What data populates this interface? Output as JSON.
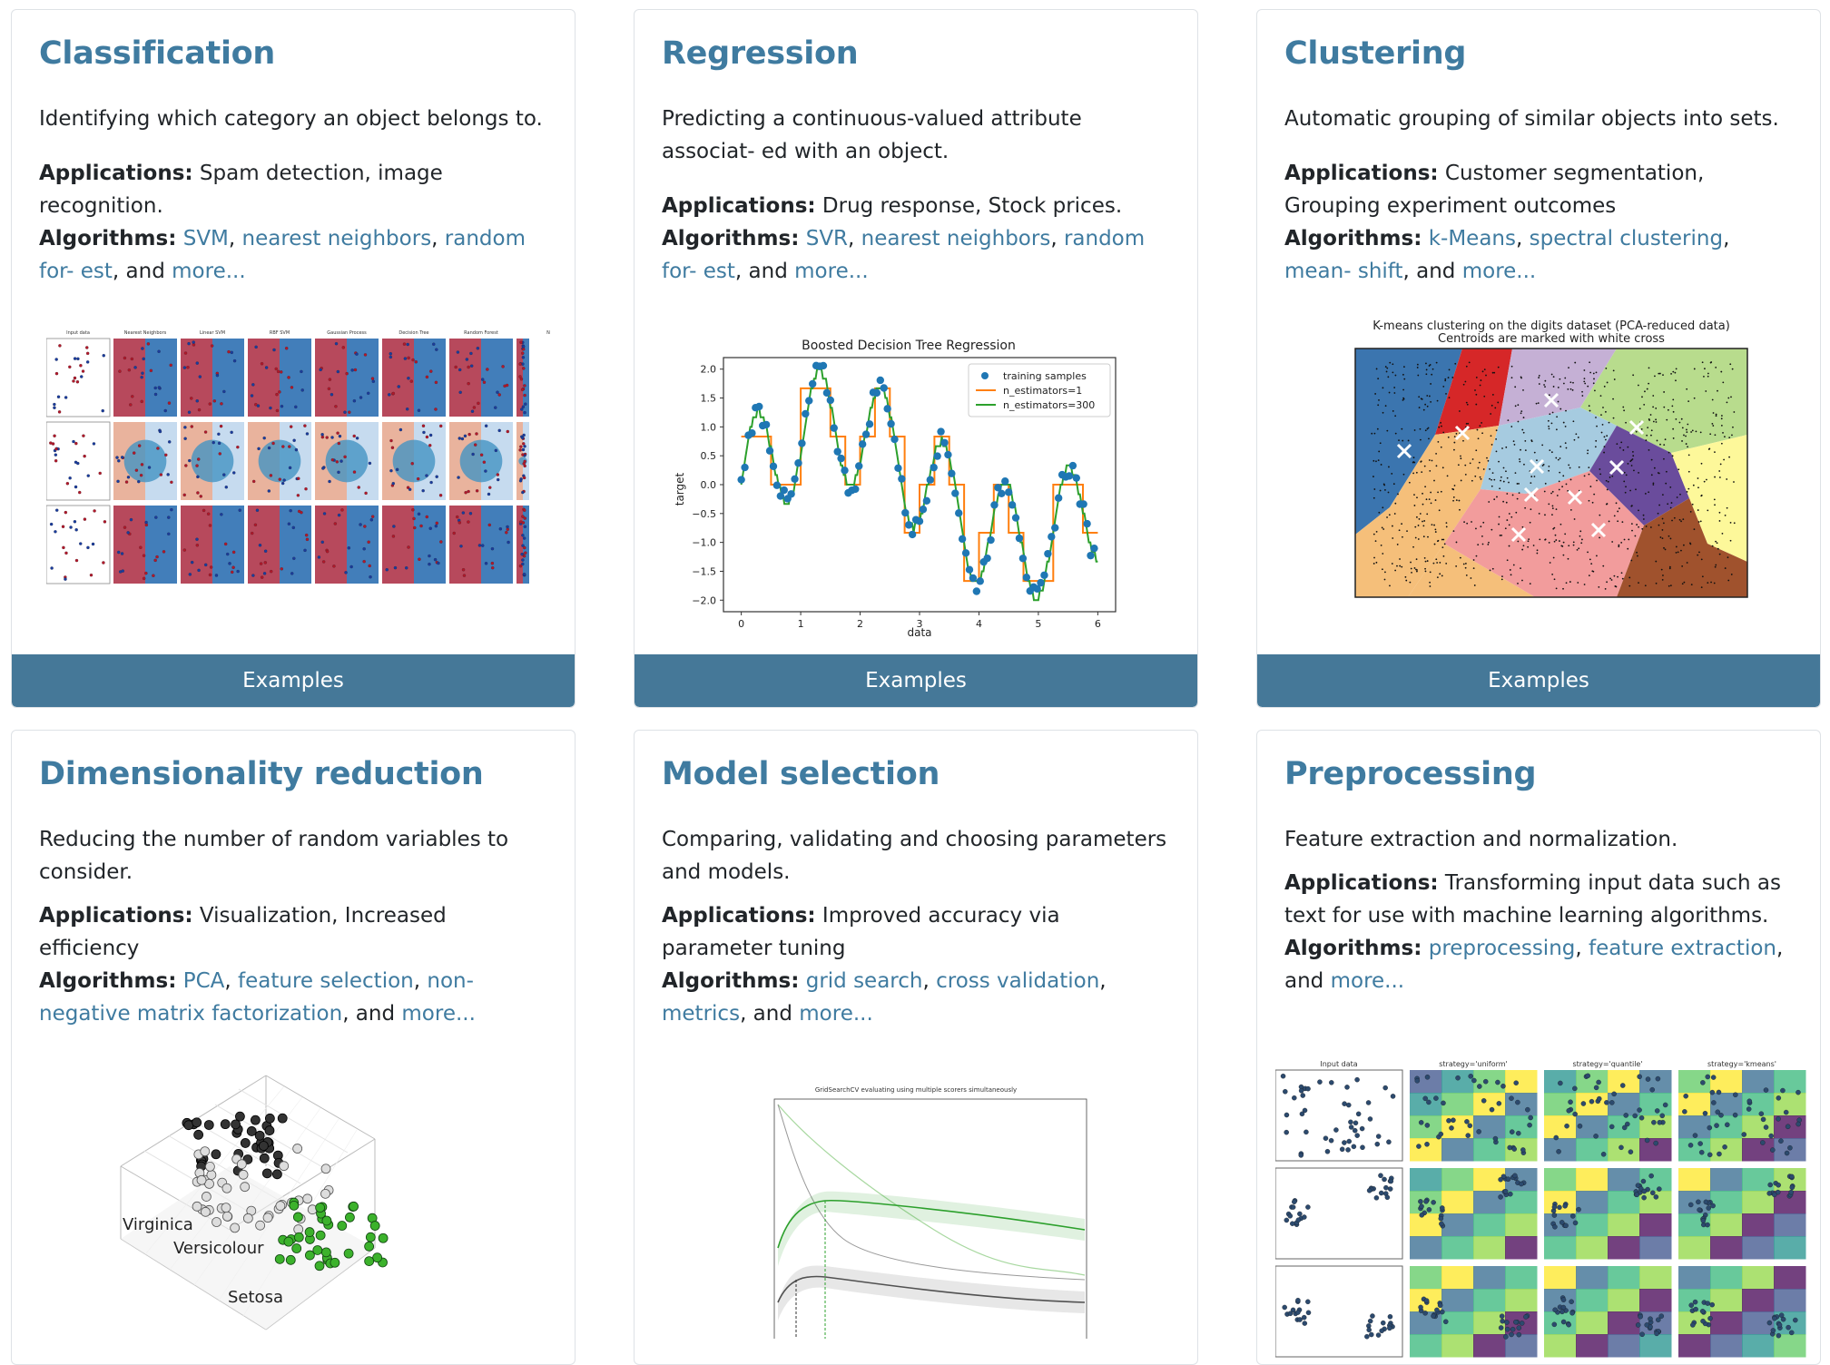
{
  "colors": {
    "heading": "#3f7ba0",
    "link": "#3f7ba0",
    "button_bg": "#457898",
    "button_text": "#ffffff",
    "border": "#dee2e6",
    "text": "#212529"
  },
  "labels": {
    "applications": "Applications:",
    "algorithms": "Algorithms:",
    "and": ", and",
    "comma": ",",
    "button": "Examples"
  },
  "cards": [
    {
      "title": "Classification",
      "desc": "Identifying which category an object belongs to.",
      "apps": "Spam detection, image recognition.",
      "algos": [
        "SVM",
        "nearest neighbors",
        "random for- est"
      ],
      "more": "more..."
    },
    {
      "title": "Regression",
      "desc": "Predicting a continuous-valued attribute associat- ed with an object.",
      "apps": "Drug response, Stock prices.",
      "algos": [
        "SVR",
        "nearest neighbors",
        "random for- est"
      ],
      "more": "more..."
    },
    {
      "title": "Clustering",
      "desc": "Automatic grouping of similar objects into sets.",
      "apps": "Customer segmentation, Grouping experiment outcomes",
      "algos": [
        "k-Means",
        "spectral clustering",
        "mean- shift"
      ],
      "more": "more..."
    },
    {
      "title": "Dimensionality reduction",
      "desc": "Reducing the number of random variables to consider.",
      "apps": "Visualization, Increased efficiency",
      "algos": [
        "PCA",
        "feature selection",
        "non-negative matrix factorization"
      ],
      "more": "more..."
    },
    {
      "title": "Model selection",
      "desc": "Comparing, validating and choosing parameters and models.",
      "apps": "Improved accuracy via parameter tuning",
      "algos": [
        "grid search",
        "cross validation",
        "metrics"
      ],
      "more": "more..."
    },
    {
      "title": "Preprocessing",
      "desc": "Feature extraction and normalization.",
      "apps": "Transforming input data such as text for use with machine learning algorithms.",
      "algos": [
        "preprocessing",
        "feature extraction"
      ],
      "more": "more..."
    }
  ],
  "figures": {
    "classification": {
      "column_titles": [
        "Input data",
        "Nearest Neighbors",
        "Linear SVM",
        "RBF SVM",
        "Gaussian Process",
        "Decision Tree",
        "Random Forest",
        "N"
      ]
    },
    "regression": {
      "title": "Boosted Decision Tree Regression",
      "xlabel": "data",
      "ylabel": "target",
      "xticks": [
        "0",
        "1",
        "2",
        "3",
        "4",
        "5",
        "6"
      ],
      "yticks": [
        "2.0",
        "1.5",
        "1.0",
        "0.5",
        "0.0",
        "−0.5",
        "−1.0",
        "−1.5",
        "−2.0"
      ],
      "legend": [
        "training samples",
        "n_estimators=1",
        "n_estimators=300"
      ],
      "series_colors": [
        "#1f77b4",
        "#ff7f0e",
        "#2ca02c"
      ]
    },
    "clustering": {
      "title_line1": "K-means clustering on the digits dataset (PCA-reduced data)",
      "title_line2": "Centroids are marked with white cross"
    },
    "dimreduce": {
      "labels": [
        "Virginica",
        "Versicolour",
        "Setosa"
      ]
    },
    "modelsel": {
      "title": "GridSearchCV evaluating using multiple scorers simultaneously"
    },
    "preprocessing": {
      "column_titles": [
        "Input data",
        "strategy='uniform'",
        "strategy='quantile'",
        "strategy='kmeans'"
      ]
    }
  }
}
